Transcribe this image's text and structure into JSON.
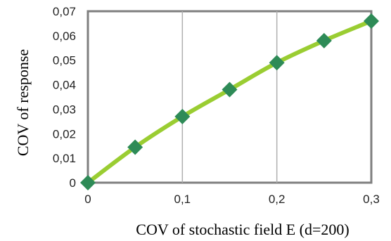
{
  "chart_data": {
    "type": "line",
    "title": "",
    "xlabel": "COV of stochastic field E (d=200)",
    "ylabel": "COV of response",
    "x": [
      0,
      0.05,
      0.1,
      0.15,
      0.2,
      0.25,
      0.3
    ],
    "series": [
      {
        "values": [
          0,
          0.0145,
          0.027,
          0.038,
          0.049,
          0.058,
          0.066
        ]
      }
    ],
    "xlim": [
      0,
      0.3
    ],
    "ylim": [
      0,
      0.07
    ],
    "x_ticks": [
      "0",
      "0,1",
      "0,2",
      "0,3"
    ],
    "y_ticks": [
      "0",
      "0,01",
      "0,02",
      "0,03",
      "0,04",
      "0,05",
      "0,06",
      "0,07"
    ],
    "grid": "vertical",
    "legend": "none",
    "colors": {
      "line": "#9acd32",
      "marker": "#2e8b57",
      "frame": "#7f7f7f",
      "grid": "#b0b0b0"
    }
  }
}
